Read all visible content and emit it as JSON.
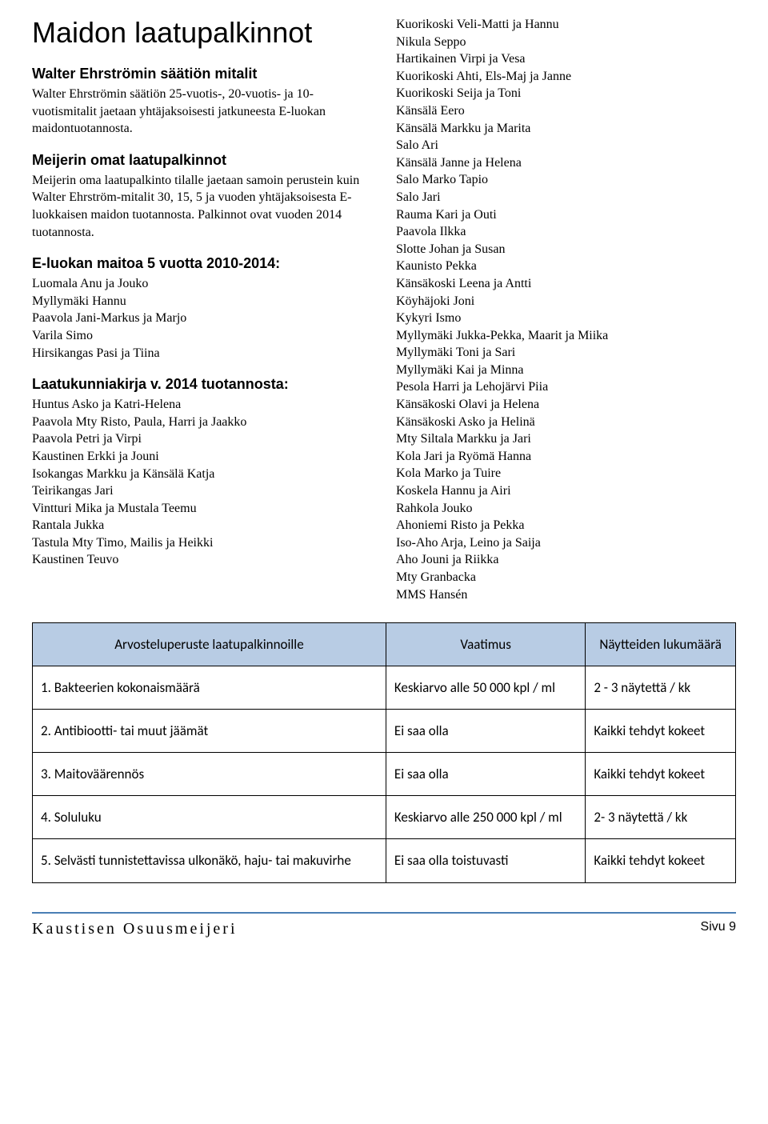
{
  "title": "Maidon laatupalkinnot",
  "section1": {
    "heading": "Walter Ehrströmin säätiön mitalit",
    "text": "Walter Ehrströmin säätiön 25-vuotis-, 20-vuotis- ja 10-vuotismitalit jaetaan yhtäjaksoisesti jatkuneesta E-luokan maidontuotannosta."
  },
  "section2": {
    "heading": "Meijerin omat laatupalkinnot",
    "text": "Meijerin oma laatupalkinto tilalle jaetaan samoin perustein kuin Walter Ehrström-mitalit 30, 15, 5 ja vuoden yhtäjaksoisesta E-luokkaisen maidon tuotannosta. Palkinnot ovat vuoden 2014 tuotannosta."
  },
  "section3": {
    "heading": "E-luokan maitoa 5 vuotta 2010-2014:",
    "names": [
      "Luomala Anu ja Jouko",
      "Myllymäki Hannu",
      "Paavola Jani-Markus ja Marjo",
      "Varila Simo",
      "Hirsikangas Pasi ja Tiina"
    ]
  },
  "section4": {
    "heading": "Laatukunniakirja v. 2014 tuotannosta:",
    "names": [
      "Huntus Asko ja Katri-Helena",
      "Paavola Mty Risto, Paula, Harri ja Jaakko",
      "Paavola Petri ja Virpi",
      "Kaustinen Erkki ja Jouni",
      "Isokangas Markku ja Känsälä Katja",
      "Teirikangas Jari",
      "Vintturi Mika ja Mustala Teemu",
      "Rantala Jukka",
      "Tastula Mty Timo, Mailis ja Heikki",
      "Kaustinen Teuvo"
    ]
  },
  "rightColumn": {
    "names": [
      "Kuorikoski Veli-Matti ja Hannu",
      "Nikula Seppo",
      "Hartikainen Virpi ja Vesa",
      "Kuorikoski Ahti, Els-Maj ja Janne",
      "Kuorikoski Seija ja Toni",
      "Känsälä Eero",
      "Känsälä Markku ja Marita",
      "Salo Ari",
      "Känsälä Janne ja Helena",
      "Salo Marko Tapio",
      "Salo Jari",
      "Rauma Kari ja Outi",
      "Paavola Ilkka",
      "Slotte Johan ja Susan",
      "Kaunisto Pekka",
      "Känsäkoski Leena ja Antti",
      "Köyhäjoki Joni",
      "Kykyri Ismo",
      "Myllymäki Jukka-Pekka, Maarit ja Miika",
      "Myllymäki Toni ja Sari",
      "Myllymäki Kai ja Minna",
      "Pesola Harri ja Lehojärvi Piia",
      "Känsäkoski Olavi ja Helena",
      "Känsäkoski Asko ja Helinä",
      "Mty Siltala Markku ja Jari",
      "Kola Jari ja Ryömä Hanna",
      "Kola Marko ja Tuire",
      "Koskela Hannu ja Airi",
      "Rahkola Jouko",
      "Ahoniemi Risto ja Pekka",
      "Iso-Aho Arja, Leino ja Saija",
      "Aho Jouni ja Riikka",
      "Mty Granbacka",
      "MMS Hansén"
    ]
  },
  "table": {
    "headers": [
      "Arvosteluperuste laatupalkinnoille",
      "Vaatimus",
      "Näytteiden lukumäärä"
    ],
    "rows": [
      [
        "1. Bakteerien kokonaismäärä",
        "Keskiarvo alle 50 000 kpl / ml",
        "2 - 3 näytettä / kk"
      ],
      [
        "2. Antibiootti- tai muut jäämät",
        "Ei saa olla",
        "Kaikki tehdyt kokeet"
      ],
      [
        "3. Maitoväärennös",
        "Ei saa olla",
        "Kaikki tehdyt kokeet"
      ],
      [
        "4. Soluluku",
        "Keskiarvo alle 250 000 kpl / ml",
        "2- 3 näytettä / kk"
      ],
      [
        "5. Selvästi tunnistettavissa ulkonäkö, haju- tai makuvirhe",
        "Ei saa olla toistuvasti",
        "Kaikki tehdyt kokeet"
      ]
    ],
    "header_bg": "#b8cce4",
    "border_color": "#000000"
  },
  "footer": {
    "left": "Kaustisen Osuusmeijeri",
    "right": "Sivu 9",
    "line_color": "#4a7fb5"
  }
}
